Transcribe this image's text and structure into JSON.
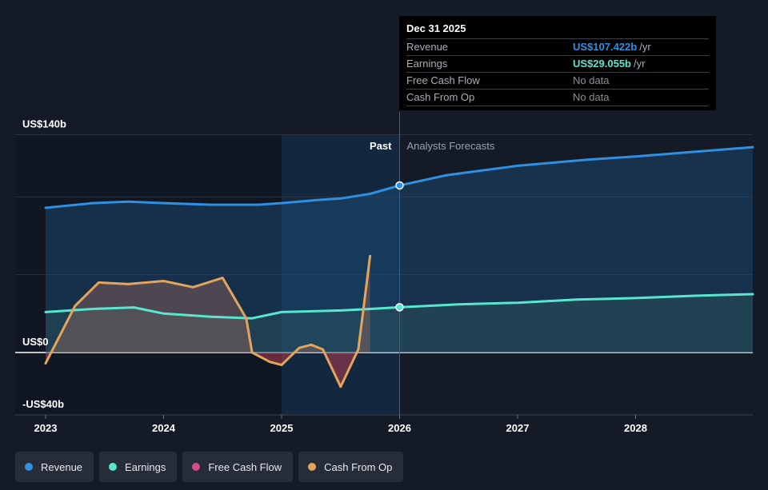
{
  "chart_data": {
    "type": "area",
    "x_ticks": [
      "2023",
      "2024",
      "2025",
      "2026",
      "2027",
      "2028"
    ],
    "x_tick_values": [
      2023,
      2024,
      2025,
      2026,
      2027,
      2028
    ],
    "xlim": [
      2023,
      2029
    ],
    "y_ticks": [
      "US$140b",
      "US$0",
      "-US$40b"
    ],
    "ylim": [
      -40,
      140
    ],
    "past_label": "Past",
    "forecast_label": "Analysts Forecasts",
    "past_end": 2026,
    "series": [
      {
        "name": "Revenue",
        "color": "#2f8fe0",
        "forecast": true,
        "points": [
          [
            2023.0,
            93
          ],
          [
            2023.4,
            96
          ],
          [
            2023.7,
            97
          ],
          [
            2024.0,
            96
          ],
          [
            2024.4,
            95
          ],
          [
            2024.8,
            95
          ],
          [
            2025.0,
            96
          ],
          [
            2025.3,
            98
          ],
          [
            2025.5,
            99
          ],
          [
            2025.75,
            102
          ],
          [
            2026.0,
            107.4
          ],
          [
            2026.4,
            114
          ],
          [
            2027.0,
            120
          ],
          [
            2027.6,
            124
          ],
          [
            2028.0,
            126
          ],
          [
            2028.5,
            129
          ],
          [
            2029.0,
            132
          ]
        ]
      },
      {
        "name": "Earnings",
        "color": "#59e6cf",
        "forecast": true,
        "points": [
          [
            2023.0,
            26
          ],
          [
            2023.4,
            28
          ],
          [
            2023.75,
            29
          ],
          [
            2024.0,
            25
          ],
          [
            2024.4,
            23
          ],
          [
            2024.75,
            22
          ],
          [
            2025.0,
            26
          ],
          [
            2025.5,
            27
          ],
          [
            2025.75,
            28
          ],
          [
            2026.0,
            29.1
          ],
          [
            2026.5,
            31
          ],
          [
            2027.0,
            32
          ],
          [
            2027.5,
            34
          ],
          [
            2028.0,
            35
          ],
          [
            2028.5,
            36.5
          ],
          [
            2029.0,
            37.5
          ]
        ]
      },
      {
        "name": "Free Cash Flow",
        "color": "#d44a8c",
        "forecast": false,
        "points": []
      },
      {
        "name": "Cash From Op",
        "color": "#e2a55b",
        "forecast": false,
        "points": [
          [
            2023.0,
            -7
          ],
          [
            2023.25,
            30
          ],
          [
            2023.45,
            45
          ],
          [
            2023.7,
            44
          ],
          [
            2024.0,
            46
          ],
          [
            2024.25,
            42
          ],
          [
            2024.5,
            48
          ],
          [
            2024.7,
            22
          ],
          [
            2024.75,
            0
          ],
          [
            2024.9,
            -6
          ],
          [
            2025.0,
            -8
          ],
          [
            2025.15,
            3
          ],
          [
            2025.25,
            5
          ],
          [
            2025.35,
            2
          ],
          [
            2025.5,
            -22
          ],
          [
            2025.65,
            2
          ],
          [
            2025.75,
            62
          ]
        ]
      }
    ],
    "grid": true
  },
  "tooltip": {
    "date": "Dec 31 2025",
    "rows": [
      {
        "label": "Revenue",
        "value": "US$107.422b",
        "unit": "/yr",
        "color": "#2f8fe0"
      },
      {
        "label": "Earnings",
        "value": "US$29.055b",
        "unit": "/yr",
        "color": "#59e6cf"
      },
      {
        "label": "Free Cash Flow",
        "value": "No data",
        "unit": "",
        "color": "#8b9098"
      },
      {
        "label": "Cash From Op",
        "value": "No data",
        "unit": "",
        "color": "#8b9098"
      }
    ]
  },
  "legend": [
    {
      "label": "Revenue",
      "color": "#2f8fe0"
    },
    {
      "label": "Earnings",
      "color": "#59e6cf"
    },
    {
      "label": "Free Cash Flow",
      "color": "#d44a8c"
    },
    {
      "label": "Cash From Op",
      "color": "#e2a55b"
    }
  ]
}
